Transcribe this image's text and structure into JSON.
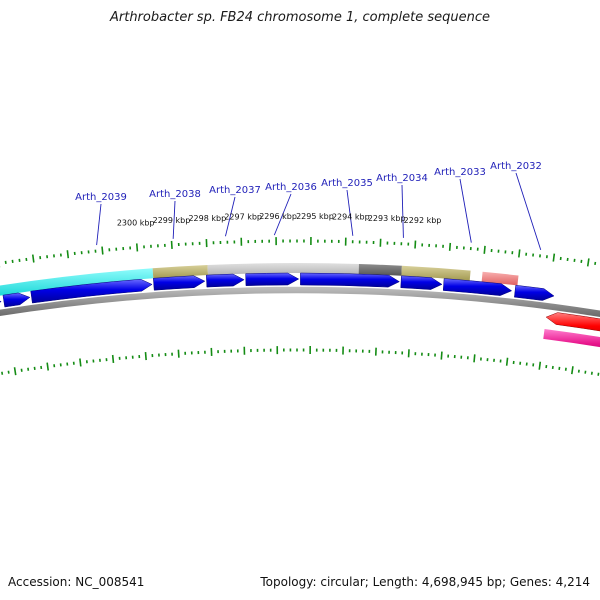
{
  "title": "Arthrobacter sp. FB24 chromosome 1, complete sequence",
  "footer": {
    "accession": "Accession: NC_008541",
    "summary": "Topology: circular; Length: 4,698,945 bp; Genes: 4,214"
  },
  "colors": {
    "forward_cds": "#0000e0",
    "reverse_cds": "#ff0000",
    "reverse_rna": "#e0158a",
    "backbone": "#8a8a8a",
    "tick": "#148c14",
    "label": "#1f1fb8",
    "cog_cyan": "#00e8e8",
    "cog_khaki": "#bdb36a",
    "cog_lightgray": "#c8c8c8",
    "cog_darkgray": "#707070",
    "cog_pink": "#f08080"
  },
  "kbp_labels": [
    {
      "text": "2300 kbp",
      "bp": 2300000
    },
    {
      "text": "2299 kbp",
      "bp": 2299000
    },
    {
      "text": "2298 kbp",
      "bp": 2298000
    },
    {
      "text": "2297 kbp",
      "bp": 2297000
    },
    {
      "text": "2296 kbp",
      "bp": 2296000
    },
    {
      "text": "2295 kbp",
      "bp": 2295000
    },
    {
      "text": "2294 kbp",
      "bp": 2294000
    },
    {
      "text": "2293 kbp",
      "bp": 2293000
    },
    {
      "text": "2292 kbp",
      "bp": 2292000
    }
  ],
  "genes": [
    {
      "name": "Arth_2039"
    },
    {
      "name": "Arth_2038"
    },
    {
      "name": "Arth_2037"
    },
    {
      "name": "Arth_2036"
    },
    {
      "name": "Arth_2035"
    },
    {
      "name": "Arth_2034"
    },
    {
      "name": "Arth_2033"
    },
    {
      "name": "Arth_2032"
    }
  ]
}
